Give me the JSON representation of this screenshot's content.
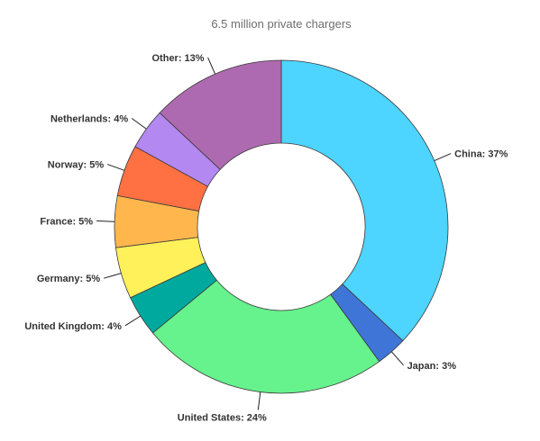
{
  "chart_data": {
    "type": "pie",
    "variant": "donut",
    "title": "6.5 million private chargers",
    "slices": [
      {
        "label": "China: 37%",
        "value": 37,
        "color": "#4DD4FF"
      },
      {
        "label": "Japan: 3%",
        "value": 3,
        "color": "#3F75D6"
      },
      {
        "label": "United States: 24%",
        "value": 24,
        "color": "#66F28C"
      },
      {
        "label": "United Kingdom: 4%",
        "value": 4,
        "color": "#00A99D"
      },
      {
        "label": "Germany: 5%",
        "value": 5,
        "color": "#FFF159"
      },
      {
        "label": "France: 5%",
        "value": 5,
        "color": "#FFB74D"
      },
      {
        "label": "Norway: 5%",
        "value": 5,
        "color": "#FF7043"
      },
      {
        "label": "Netherlands: 4%",
        "value": 4,
        "color": "#B388F0"
      },
      {
        "label": "Other: 13%",
        "value": 13,
        "color": "#AE6AB0"
      }
    ]
  }
}
